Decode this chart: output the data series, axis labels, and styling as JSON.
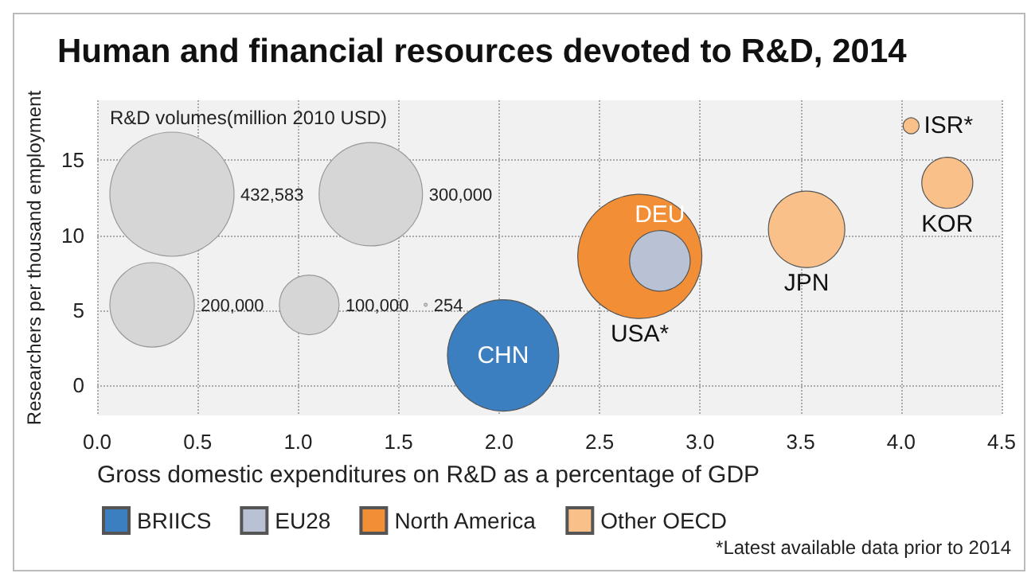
{
  "chart_data": {
    "type": "bubble",
    "title": "Human and financial resources devoted to R&D, 2014",
    "xlabel": "Gross domestic expenditures on R&D as a percentage of GDP",
    "ylabel": "Researchers per thousand employment",
    "legend_title": "R&D volumes(million 2010 USD)",
    "series": [
      {
        "name": "BRIICS",
        "color": "#3b7fc0",
        "x": [
          2.02
        ],
        "values": [
          2.0
        ],
        "sizes": [
          348000
        ]
      },
      {
        "name": "EU28",
        "color": "#b9c2d4",
        "x": [
          2.8
        ],
        "values": [
          8.3
        ],
        "sizes": [
          103000
        ]
      },
      {
        "name": "North America",
        "color": "#f28e35",
        "x": [
          2.7
        ],
        "values": [
          8.6
        ],
        "sizes": [
          432583
        ]
      },
      {
        "name": "Other OECD",
        "color": "#f9c08a",
        "x": [
          3.53,
          4.23,
          4.05
        ],
        "values": [
          10.4,
          13.5,
          17.3
        ],
        "sizes": [
          164000,
          73000,
          7100
        ]
      }
    ],
    "size_legend": [
      254,
      {
        "value": 100000,
        "label": "100,000"
      },
      {
        "value": 200000,
        "label": "200,000"
      },
      {
        "value": 300000,
        "label": "300,000"
      },
      {
        "value": 432583,
        "label": "432,583"
      }
    ],
    "xlim": [
      0,
      4.5
    ],
    "xticks": [
      {
        "value": 0,
        "label": "0.0"
      },
      0.5,
      {
        "value": 1,
        "label": "1.0"
      },
      1.5,
      {
        "value": 2,
        "label": "2.0"
      },
      2.5,
      {
        "value": 3,
        "label": "3.0"
      },
      3.5,
      {
        "value": 4,
        "label": "4.0"
      },
      4.5
    ],
    "ylim": [
      -2,
      19
    ],
    "yticks": [
      0,
      5,
      10,
      15
    ],
    "grid": true,
    "legend": "bottom left",
    "annotations": [
      {
        "text": "CHN",
        "x": 2.02,
        "y": 2.0
      },
      {
        "text": "DEU",
        "x": 2.8,
        "y": 8.3
      },
      {
        "text": "USA*",
        "x": 2.7,
        "y": 8.6
      },
      {
        "text": "JPN",
        "x": 3.53,
        "y": 10.4
      },
      {
        "text": "KOR",
        "x": 4.23,
        "y": 13.5
      },
      {
        "text": "ISR*",
        "x": 4.05,
        "y": 17.3
      },
      "*Latest available data prior to 2014"
    ]
  }
}
